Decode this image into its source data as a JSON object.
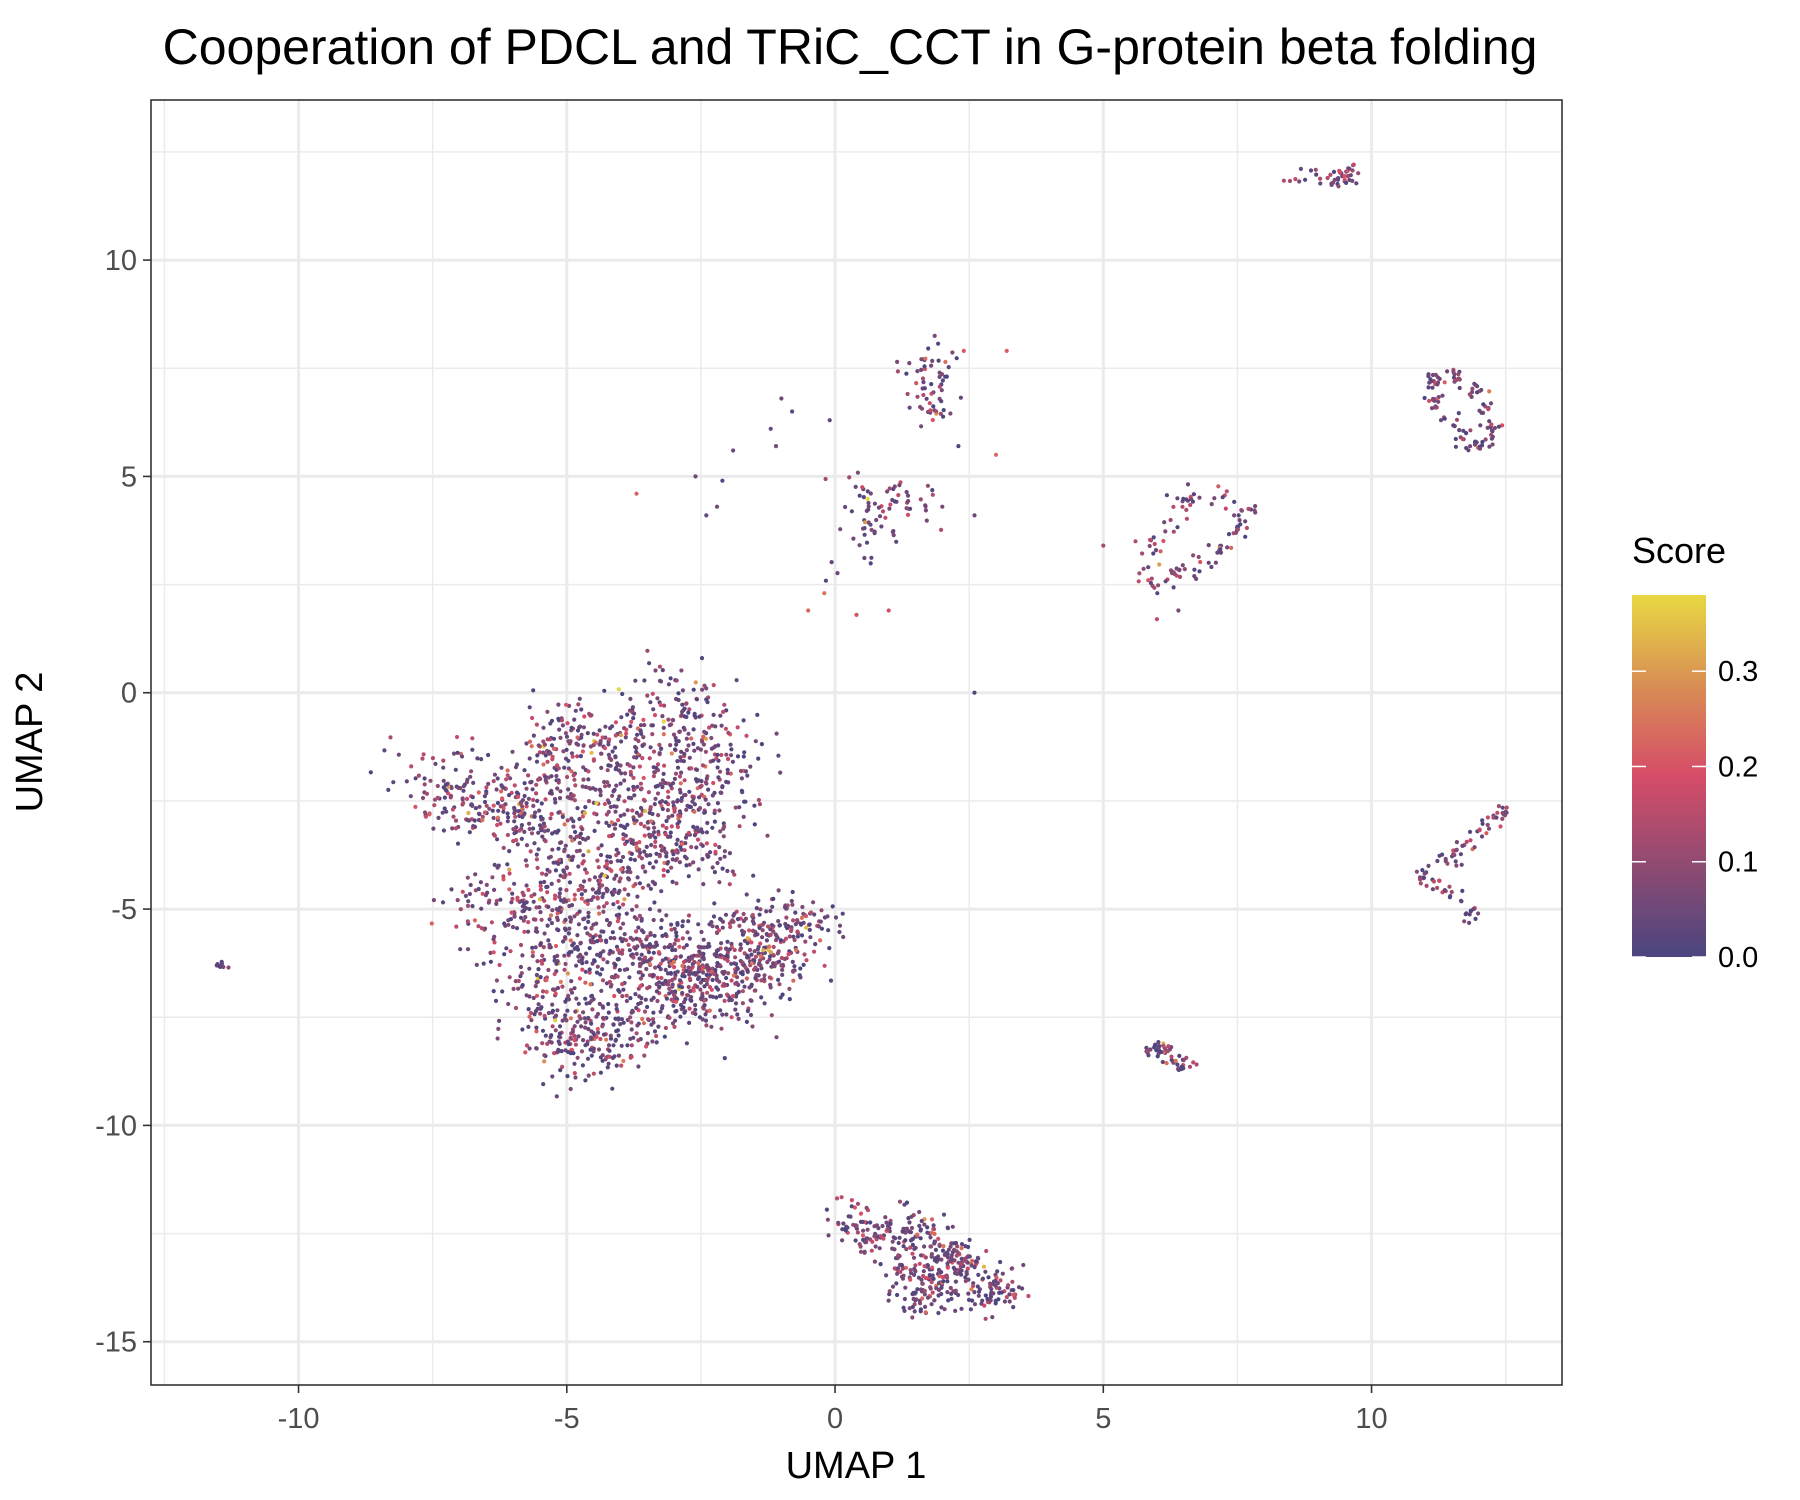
{
  "chart_data": {
    "type": "scatter",
    "title": "Cooperation of PDCL  and TRiC_CCT in G-protein beta folding",
    "xlabel": "UMAP 1",
    "ylabel": "UMAP 2",
    "xlim": [
      -12.75,
      13.55
    ],
    "ylim": [
      -16.0,
      13.7
    ],
    "x_ticks": [
      -10,
      -5,
      0,
      5,
      10
    ],
    "y_ticks": [
      -15,
      -10,
      -5,
      0,
      5,
      10
    ],
    "x_tick_labels": [
      "-10",
      "-5",
      "0",
      "5",
      "10"
    ],
    "y_tick_labels": [
      "-15",
      "-10",
      "-5",
      "0",
      "5",
      "10"
    ],
    "grid": true,
    "legend": {
      "title": "Score",
      "placement": "right",
      "type": "colorbar",
      "range": [
        0.0,
        0.38
      ],
      "ticks": [
        0.0,
        0.1,
        0.2,
        0.3
      ],
      "tick_labels": [
        "0.0",
        "0.1",
        "0.2",
        "0.3"
      ],
      "colors": [
        "#4a4580",
        "#8e4b72",
        "#d64c68",
        "#d88e54",
        "#e8d842"
      ]
    },
    "clusters": [
      {
        "name": "",
        "points": [
          [
            -7.6,
            -2.0
          ],
          [
            -7.2,
            -2.3
          ],
          [
            -6.8,
            -2.4
          ],
          [
            -6.4,
            -2.6
          ],
          [
            -6.0,
            -2.7
          ],
          [
            -5.7,
            -2.3
          ],
          [
            -5.4,
            -1.6
          ],
          [
            -5.0,
            -1.0
          ],
          [
            -4.8,
            -0.8
          ],
          [
            -4.6,
            -1.8
          ],
          [
            -4.9,
            -3.0
          ],
          [
            -5.3,
            -3.5
          ],
          [
            -5.6,
            -3.2
          ],
          [
            -6.5,
            -4.9
          ],
          [
            -6.0,
            -4.9
          ],
          [
            -5.6,
            -5.0
          ],
          [
            -5.2,
            -4.8
          ],
          [
            -4.8,
            -4.9
          ],
          [
            -4.4,
            -4.5
          ],
          [
            -4.0,
            -4.3
          ],
          [
            -3.7,
            -4.0
          ],
          [
            -3.4,
            -3.6
          ],
          [
            -3.0,
            -3.4
          ],
          [
            -2.6,
            -3.0
          ],
          [
            -2.3,
            -2.6
          ],
          [
            -2.2,
            -1.6
          ],
          [
            -2.5,
            -1.0
          ],
          [
            -2.9,
            -0.4
          ],
          [
            -3.2,
            -0.1
          ],
          [
            -3.5,
            -0.6
          ],
          [
            -3.7,
            -1.2
          ],
          [
            -3.9,
            -1.9
          ],
          [
            -4.1,
            -2.6
          ],
          [
            -4.2,
            -3.3
          ],
          [
            -3.2,
            -2.2
          ],
          [
            -2.8,
            -1.8
          ],
          [
            -3.0,
            -2.8
          ],
          [
            -2.4,
            -3.8
          ]
        ],
        "spread": [
          0.45,
          0.45
        ],
        "count": 1400
      },
      {
        "name": "",
        "points": [
          [
            -5.6,
            -6.5
          ],
          [
            -5.4,
            -7.2
          ],
          [
            -5.1,
            -7.8
          ],
          [
            -4.8,
            -8.2
          ],
          [
            -4.4,
            -8.2
          ],
          [
            -4.0,
            -7.9
          ],
          [
            -3.6,
            -7.5
          ],
          [
            -3.2,
            -7.2
          ],
          [
            -2.8,
            -7.0
          ],
          [
            -2.4,
            -6.8
          ],
          [
            -2.0,
            -6.6
          ],
          [
            -1.6,
            -6.4
          ],
          [
            -1.2,
            -6.3
          ],
          [
            -0.9,
            -6.0
          ],
          [
            -0.6,
            -5.4
          ],
          [
            -0.9,
            -5.2
          ],
          [
            -1.4,
            -5.6
          ],
          [
            -1.8,
            -5.9
          ],
          [
            -2.2,
            -6.2
          ],
          [
            -2.6,
            -6.4
          ],
          [
            -3.0,
            -6.2
          ],
          [
            -3.4,
            -5.9
          ],
          [
            -3.8,
            -5.7
          ],
          [
            -4.2,
            -5.6
          ],
          [
            -4.6,
            -5.8
          ],
          [
            -5.0,
            -6.0
          ],
          [
            -2.6,
            -5.6
          ],
          [
            -1.9,
            -7.2
          ],
          [
            -3.0,
            -6.8
          ],
          [
            -4.2,
            -6.8
          ]
        ],
        "spread": [
          0.45,
          0.4
        ],
        "count": 1200
      },
      {
        "name": "",
        "points": [
          [
            0.3,
            -12.2
          ],
          [
            0.7,
            -12.5
          ],
          [
            1.1,
            -12.6
          ],
          [
            1.4,
            -12.4
          ],
          [
            1.8,
            -12.7
          ],
          [
            2.2,
            -12.8
          ],
          [
            2.4,
            -13.2
          ],
          [
            2.2,
            -13.6
          ],
          [
            1.9,
            -14.0
          ],
          [
            1.5,
            -13.8
          ],
          [
            1.2,
            -13.4
          ],
          [
            2.8,
            -13.9
          ],
          [
            3.2,
            -13.8
          ],
          [
            1.8,
            -13.3
          ]
        ],
        "spread": [
          0.25,
          0.25
        ],
        "count": 450
      },
      {
        "name": "",
        "points": [
          [
            0.2,
            4.3
          ],
          [
            0.5,
            4.6
          ],
          [
            0.8,
            4.2
          ],
          [
            1.1,
            4.5
          ],
          [
            1.5,
            4.5
          ],
          [
            0.6,
            3.8
          ],
          [
            0.3,
            3.0
          ],
          [
            1.6,
            7.2
          ],
          [
            1.7,
            7.6
          ],
          [
            1.8,
            6.9
          ],
          [
            2.0,
            7.5
          ],
          [
            1.7,
            6.3
          ]
        ],
        "spread": [
          0.25,
          0.28
        ],
        "count": 140
      },
      {
        "name": "",
        "points": [
          [
            5.9,
            2.7
          ],
          [
            6.2,
            2.6
          ],
          [
            6.5,
            2.8
          ],
          [
            6.9,
            3.0
          ],
          [
            7.2,
            3.3
          ],
          [
            7.5,
            3.8
          ],
          [
            7.6,
            4.2
          ],
          [
            7.2,
            4.5
          ],
          [
            6.7,
            4.5
          ],
          [
            6.4,
            4.3
          ],
          [
            6.2,
            3.8
          ],
          [
            5.9,
            3.4
          ]
        ],
        "spread": [
          0.14,
          0.14
        ],
        "count": 110
      },
      {
        "name": "",
        "points": [
          [
            11.2,
            7.2
          ],
          [
            11.6,
            7.3
          ],
          [
            11.9,
            7.0
          ],
          [
            12.1,
            6.6
          ],
          [
            12.2,
            6.1
          ],
          [
            12.0,
            5.7
          ],
          [
            11.7,
            5.9
          ],
          [
            11.4,
            6.3
          ],
          [
            11.2,
            6.7
          ]
        ],
        "spread": [
          0.1,
          0.1
        ],
        "count": 110
      },
      {
        "name": "",
        "points": [
          [
            11.0,
            -4.2
          ],
          [
            11.3,
            -4.4
          ],
          [
            11.6,
            -4.6
          ],
          [
            11.9,
            -5.1
          ],
          [
            11.4,
            -3.9
          ],
          [
            11.8,
            -3.5
          ],
          [
            12.1,
            -3.2
          ],
          [
            12.4,
            -2.8
          ]
        ],
        "spread": [
          0.12,
          0.12
        ],
        "count": 90
      },
      {
        "name": "",
        "points": [
          [
            8.7,
            11.8
          ],
          [
            9.1,
            12.0
          ],
          [
            9.5,
            12.1
          ],
          [
            9.3,
            11.8
          ],
          [
            9.6,
            11.9
          ]
        ],
        "spread": [
          0.15,
          0.08
        ],
        "count": 45
      },
      {
        "name": "",
        "points": [
          [
            5.8,
            -8.3
          ],
          [
            6.1,
            -8.2
          ],
          [
            6.3,
            -8.5
          ],
          [
            6.5,
            -8.6
          ]
        ],
        "spread": [
          0.1,
          0.08
        ],
        "count": 50
      },
      {
        "name": "",
        "points": [
          [
            -11.5,
            -6.3
          ],
          [
            -11.3,
            -6.35
          ]
        ],
        "spread": [
          0.05,
          0.03
        ],
        "count": 8
      }
    ],
    "outliers": [
      [
        -3.7,
        4.6
      ],
      [
        -2.6,
        5.0
      ],
      [
        -2.1,
        4.9
      ],
      [
        -2.2,
        4.3
      ],
      [
        -2.4,
        4.1
      ],
      [
        -1.0,
        6.8
      ],
      [
        -0.8,
        6.5
      ],
      [
        -1.2,
        6.1
      ],
      [
        -1.1,
        5.7
      ],
      [
        -1.9,
        5.6
      ],
      [
        -0.1,
        6.3
      ],
      [
        -0.5,
        1.9
      ],
      [
        -0.2,
        2.3
      ],
      [
        0.4,
        1.8
      ],
      [
        1.0,
        1.9
      ],
      [
        2.3,
        5.7
      ],
      [
        2.4,
        7.9
      ],
      [
        3.2,
        7.9
      ],
      [
        3.0,
        5.5
      ],
      [
        2.6,
        0.0
      ],
      [
        5.0,
        3.4
      ],
      [
        5.6,
        3.5
      ],
      [
        6.0,
        1.7
      ],
      [
        6.4,
        1.9
      ],
      [
        2.6,
        4.1
      ],
      [
        2.0,
        4.3
      ],
      [
        1.2,
        4.8
      ]
    ]
  }
}
